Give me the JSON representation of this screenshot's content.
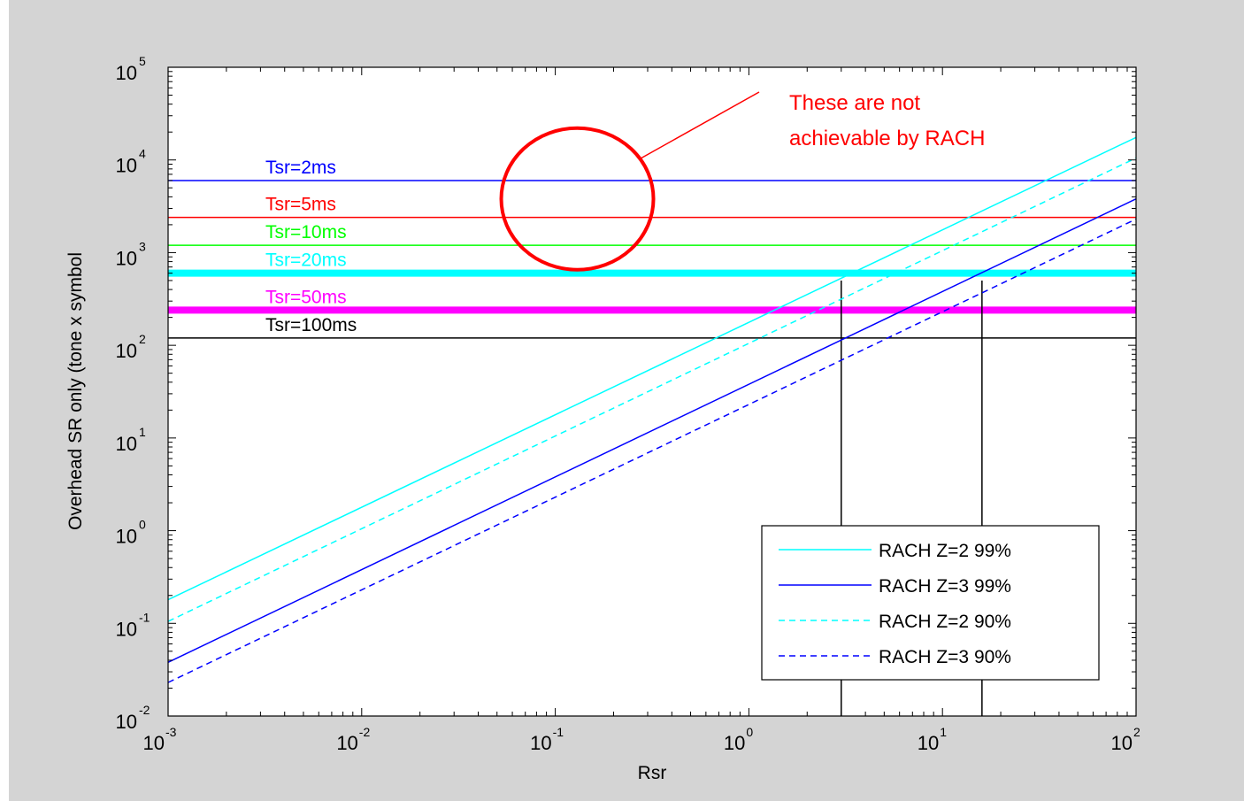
{
  "chart_data": {
    "type": "line",
    "xlabel": "Rsr",
    "ylabel": "Overhead SR only (tone x symbol",
    "xscale": "log",
    "yscale": "log",
    "xlim": [
      0.001,
      100
    ],
    "ylim": [
      0.01,
      100000
    ],
    "x_ticks": [
      {
        "base": "10",
        "exp": "-3",
        "value": 0.001
      },
      {
        "base": "10",
        "exp": "-2",
        "value": 0.01
      },
      {
        "base": "10",
        "exp": "-1",
        "value": 0.1
      },
      {
        "base": "10",
        "exp": "0",
        "value": 1
      },
      {
        "base": "10",
        "exp": "1",
        "value": 10
      },
      {
        "base": "10",
        "exp": "2",
        "value": 100
      }
    ],
    "y_ticks": [
      {
        "base": "10",
        "exp": "-2",
        "value": 0.01
      },
      {
        "base": "10",
        "exp": "-1",
        "value": 0.1
      },
      {
        "base": "10",
        "exp": "0",
        "value": 1
      },
      {
        "base": "10",
        "exp": "1",
        "value": 10
      },
      {
        "base": "10",
        "exp": "2",
        "value": 100
      },
      {
        "base": "10",
        "exp": "3",
        "value": 1000
      },
      {
        "base": "10",
        "exp": "4",
        "value": 10000
      },
      {
        "base": "10",
        "exp": "5",
        "value": 100000
      }
    ],
    "grid": false,
    "legend_position": "bottom-right",
    "series": [
      {
        "name": "RACH Z=2 99%",
        "color": "#00ffff",
        "style": "solid",
        "x": [
          0.001,
          100
        ],
        "y": [
          0.18,
          17500
        ]
      },
      {
        "name": "RACH Z=3 99%",
        "color": "#0000ff",
        "style": "solid",
        "x": [
          0.001,
          100
        ],
        "y": [
          0.038,
          3800
        ]
      },
      {
        "name": "RACH Z=2 90%",
        "color": "#00ffff",
        "style": "dashed",
        "x": [
          0.001,
          100
        ],
        "y": [
          0.105,
          10500
        ]
      },
      {
        "name": "RACH Z=3 90%",
        "color": "#0000ff",
        "style": "dashed",
        "x": [
          0.001,
          100
        ],
        "y": [
          0.023,
          2300
        ]
      }
    ],
    "hlines": [
      {
        "label": "Tsr=2ms",
        "y": 6000,
        "color": "#0000ff",
        "width": "thin"
      },
      {
        "label": "Tsr=5ms",
        "y": 2400,
        "color": "#ff0000",
        "width": "thin"
      },
      {
        "label": "Tsr=10ms",
        "y": 1200,
        "color": "#00ff00",
        "width": "thin"
      },
      {
        "label": "Tsr=20ms",
        "y": 600,
        "color": "#00ffff",
        "width": "thick"
      },
      {
        "label": "Tsr=50ms",
        "y": 240,
        "color": "#ff00ff",
        "width": "thick"
      },
      {
        "label": "Tsr=100ms",
        "y": 120,
        "color": "#000000",
        "width": "thin"
      }
    ],
    "vlines": [
      {
        "x": 3.0,
        "y_top": 500
      },
      {
        "x": 16.0,
        "y_top": 500
      }
    ],
    "annotation": {
      "text_lines": [
        "These are not",
        "achievable by RACH"
      ],
      "color": "#ff0000",
      "ellipse_center": {
        "x": 0.13,
        "y": 3800
      }
    }
  }
}
